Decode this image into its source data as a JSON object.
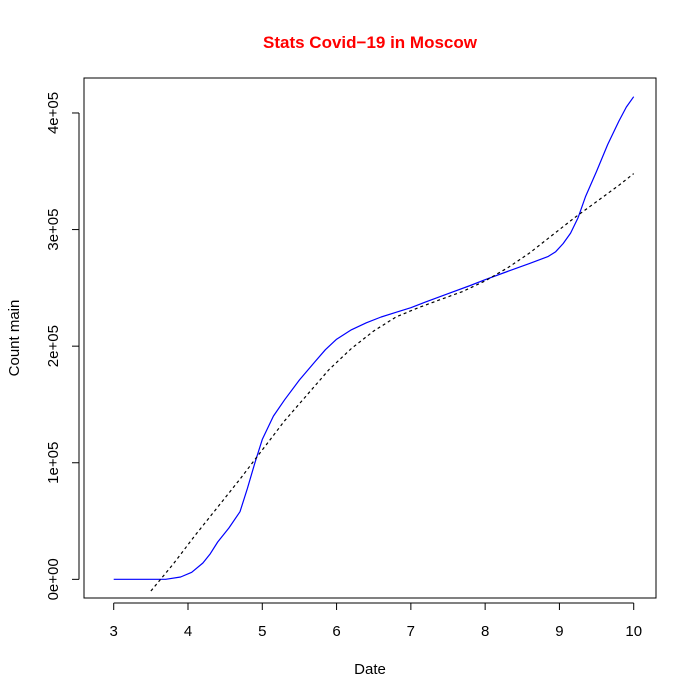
{
  "colors": {
    "title": "#ff0000",
    "main_series": "#0000ff",
    "trend_series": "#000000",
    "axis": "#000000",
    "background": "#ffffff"
  },
  "chart_data": {
    "type": "line",
    "title": "Stats Covid−19 in Moscow",
    "xlabel": "Date",
    "ylabel": "Count main",
    "xlim": [
      2.6,
      10.3
    ],
    "ylim": [
      -16000,
      430000
    ],
    "x_ticks": [
      3,
      4,
      5,
      6,
      7,
      8,
      9,
      10
    ],
    "x_tick_labels": [
      "3",
      "4",
      "5",
      "6",
      "7",
      "8",
      "9",
      "10"
    ],
    "y_ticks": [
      0,
      100000,
      200000,
      300000,
      400000
    ],
    "y_tick_labels": [
      "0e+00",
      "1e+05",
      "2e+05",
      "3e+05",
      "4e+05"
    ],
    "grid": false,
    "legend": "none",
    "series": [
      {
        "style": "solid",
        "color": "#0000ff",
        "x": [
          3.0,
          3.5,
          3.7,
          3.9,
          4.05,
          4.2,
          4.3,
          4.4,
          4.55,
          4.7,
          4.8,
          4.9,
          5.0,
          5.15,
          5.3,
          5.5,
          5.7,
          5.85,
          6.0,
          6.2,
          6.4,
          6.6,
          6.8,
          7.0,
          7.2,
          7.5,
          7.8,
          8.0,
          8.3,
          8.6,
          8.85,
          8.95,
          9.05,
          9.15,
          9.25,
          9.35,
          9.5,
          9.65,
          9.8,
          9.9,
          10.0
        ],
        "y": [
          0,
          0,
          0,
          2000,
          6000,
          14000,
          22000,
          32000,
          44000,
          58000,
          78000,
          100000,
          120000,
          140000,
          154000,
          171000,
          186000,
          197000,
          206000,
          214000,
          220000,
          225000,
          229000,
          233000,
          238000,
          245000,
          252000,
          257000,
          264000,
          271000,
          277000,
          281000,
          288000,
          297000,
          310000,
          328000,
          350000,
          373000,
          393000,
          405000,
          414000
        ]
      },
      {
        "style": "dashed",
        "color": "#000000",
        "x": [
          3.5,
          3.8,
          4.1,
          4.4,
          4.7,
          5.0,
          5.3,
          5.6,
          5.9,
          6.2,
          6.5,
          6.8,
          7.1,
          7.4,
          7.7,
          8.0,
          8.3,
          8.6,
          8.9,
          9.2,
          9.5,
          9.8,
          10.0
        ],
        "y": [
          -10000,
          13000,
          38000,
          62000,
          86000,
          111000,
          136000,
          158000,
          180000,
          198000,
          213000,
          225000,
          233000,
          240000,
          247000,
          256000,
          267000,
          280000,
          295000,
          310000,
          324000,
          338000,
          348000
        ]
      }
    ]
  }
}
